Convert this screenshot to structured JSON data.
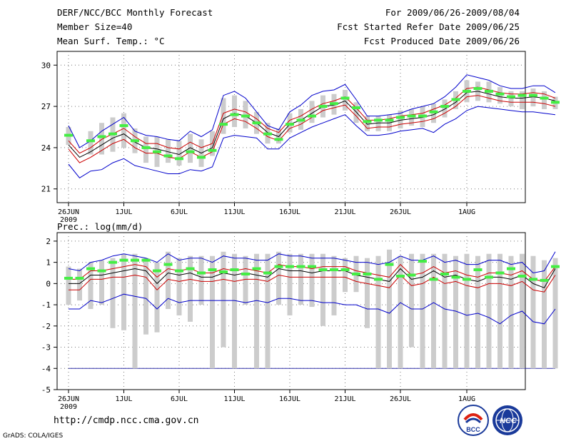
{
  "header": {
    "title": "DERF/NCC/BCC Monthly Forecast",
    "member_size": "Member Size=40",
    "variable_1": "Mean Surf. Temp.: °C",
    "period": "For 2009/06/26-2009/08/04",
    "fcst_started": "Fcst Started Refer Date 2009/06/25",
    "fcst_produced": "Fcst Produced Date 2009/06/26"
  },
  "footer": {
    "url": "http://cmdp.ncc.cma.gov.cn",
    "grads": "GrADS: COLA/IGES",
    "logo_left_text": "BCC",
    "logo_right_text": "NCC"
  },
  "chart_data": [
    {
      "type": "ensemble-line",
      "title": "Mean Surf. Temp.: °C",
      "ylim": [
        20,
        31
      ],
      "yticks": [
        21,
        24,
        27,
        30
      ],
      "grid": true,
      "x_days": 40,
      "x_ticks": [
        {
          "day": 0,
          "label": "26JUN"
        },
        {
          "day": 5,
          "label": "1JUL"
        },
        {
          "day": 10,
          "label": "6JUL"
        },
        {
          "day": 15,
          "label": "11JUL"
        },
        {
          "day": 20,
          "label": "16JUL"
        },
        {
          "day": 25,
          "label": "21JUL"
        },
        {
          "day": 30,
          "label": "26JUL"
        },
        {
          "day": 36,
          "label": "1AUG"
        }
      ],
      "year_label": "2009",
      "colors": {
        "mean": "#000000",
        "inner": "#cc0000",
        "outer": "#0000cc",
        "bar": "#cccccc",
        "obs": "#44ee44"
      },
      "series": [
        {
          "name": "mean",
          "values": [
            24.2,
            23.3,
            23.7,
            24.2,
            24.7,
            25.0,
            24.4,
            24.0,
            23.9,
            23.7,
            23.5,
            24.0,
            23.6,
            24.0,
            26.1,
            26.5,
            26.3,
            25.8,
            25.1,
            24.8,
            25.7,
            26.0,
            26.5,
            27.0,
            27.1,
            27.4,
            26.6,
            25.7,
            25.8,
            25.8,
            26.0,
            26.1,
            26.2,
            26.4,
            26.8,
            27.3,
            28.0,
            28.1,
            27.9,
            27.7,
            27.6,
            27.6,
            27.7,
            27.6,
            27.4
          ]
        },
        {
          "name": "inner_upper",
          "values": [
            24.5,
            23.6,
            24.0,
            24.6,
            25.0,
            25.4,
            24.8,
            24.3,
            24.3,
            24.0,
            23.9,
            24.4,
            24.0,
            24.3,
            26.5,
            26.8,
            26.6,
            26.1,
            25.4,
            25.1,
            26.0,
            26.3,
            26.8,
            27.2,
            27.4,
            27.7,
            26.9,
            26.0,
            26.0,
            26.1,
            26.3,
            26.4,
            26.5,
            26.8,
            27.1,
            27.6,
            28.3,
            28.4,
            28.2,
            28.0,
            27.9,
            27.9,
            28.0,
            27.9,
            27.6
          ]
        },
        {
          "name": "inner_lower",
          "values": [
            23.9,
            22.9,
            23.3,
            23.8,
            24.3,
            24.6,
            24.0,
            23.6,
            23.6,
            23.3,
            23.2,
            23.7,
            23.3,
            23.7,
            25.7,
            26.1,
            25.9,
            25.4,
            24.8,
            24.5,
            25.4,
            25.7,
            26.2,
            26.7,
            26.9,
            27.1,
            26.3,
            25.4,
            25.5,
            25.5,
            25.7,
            25.8,
            25.9,
            26.1,
            26.5,
            27.0,
            27.7,
            27.8,
            27.6,
            27.4,
            27.3,
            27.3,
            27.3,
            27.2,
            27.0
          ]
        },
        {
          "name": "outer_upper",
          "values": [
            25.6,
            24.0,
            24.5,
            25.2,
            25.7,
            26.2,
            25.2,
            24.9,
            24.8,
            24.6,
            24.5,
            25.2,
            24.8,
            25.3,
            27.8,
            28.1,
            27.6,
            26.6,
            25.6,
            25.3,
            26.6,
            27.1,
            27.8,
            28.1,
            28.2,
            28.6,
            27.5,
            26.3,
            26.3,
            26.4,
            26.5,
            26.8,
            27.0,
            27.2,
            27.7,
            28.4,
            29.3,
            29.1,
            28.9,
            28.5,
            28.3,
            28.3,
            28.5,
            28.5,
            28.0
          ]
        },
        {
          "name": "outer_lower",
          "values": [
            22.8,
            21.8,
            22.3,
            22.4,
            22.9,
            23.2,
            22.7,
            22.5,
            22.3,
            22.1,
            22.1,
            22.4,
            22.3,
            22.6,
            24.7,
            24.9,
            24.8,
            24.7,
            23.9,
            23.9,
            24.7,
            25.1,
            25.5,
            25.8,
            26.1,
            26.4,
            25.6,
            24.9,
            24.9,
            25.0,
            25.2,
            25.3,
            25.4,
            25.1,
            25.7,
            26.1,
            26.7,
            27.0,
            26.9,
            26.8,
            26.7,
            26.6,
            26.6,
            26.5,
            26.4
          ]
        },
        {
          "name": "obs",
          "values": [
            24.9,
            null,
            24.5,
            24.8,
            25.0,
            25.6,
            24.5,
            24.0,
            23.7,
            23.4,
            23.2,
            23.7,
            23.3,
            23.8,
            25.7,
            26.4,
            26.3,
            25.8,
            25.0,
            24.6,
            25.7,
            26.0,
            26.3,
            27.0,
            27.2,
            27.6,
            26.9,
            25.9,
            26.0,
            26.0,
            26.2,
            26.3,
            26.3,
            26.6,
            27.0,
            27.5,
            28.1,
            28.3,
            28.1,
            27.9,
            27.7,
            27.8,
            27.8,
            27.6,
            27.3
          ]
        }
      ],
      "bars": {
        "low": [
          24.2,
          null,
          23.5,
          23.5,
          23.7,
          24.0,
          23.6,
          22.9,
          22.6,
          22.9,
          22.7,
          22.9,
          22.6,
          23.4,
          25.0,
          25.5,
          25.4,
          25.0,
          24.3,
          24.3,
          25.1,
          25.3,
          25.8,
          26.2,
          26.4,
          26.7,
          25.8,
          25.2,
          25.2,
          25.2,
          25.4,
          25.6,
          25.5,
          25.8,
          26.2,
          26.8,
          27.3,
          27.4,
          27.3,
          27.2,
          27.0,
          26.8,
          27.0,
          26.8,
          26.8
        ],
        "high": [
          25.5,
          null,
          25.2,
          25.8,
          26.2,
          26.5,
          25.4,
          24.8,
          24.8,
          24.6,
          24.5,
          25.0,
          24.6,
          25.2,
          27.6,
          27.8,
          27.4,
          26.6,
          25.8,
          25.4,
          26.5,
          26.8,
          27.4,
          27.8,
          27.9,
          28.2,
          27.3,
          26.3,
          26.3,
          26.4,
          26.7,
          26.8,
          27.0,
          27.2,
          27.5,
          28.1,
          28.9,
          28.8,
          28.8,
          28.4,
          28.1,
          28.1,
          28.3,
          28.1,
          27.7
        ]
      }
    },
    {
      "type": "ensemble-line",
      "title": "Prec.: log(mm/d)",
      "ylim": [
        -5,
        2.4
      ],
      "yticks": [
        -5,
        -4,
        -3,
        -2,
        -1,
        0,
        1,
        2
      ],
      "grid": true,
      "x_days": 40,
      "x_ticks": [
        {
          "day": 0,
          "label": "26JUN"
        },
        {
          "day": 5,
          "label": "1JUL"
        },
        {
          "day": 10,
          "label": "6JUL"
        },
        {
          "day": 15,
          "label": "11JUL"
        },
        {
          "day": 20,
          "label": "16JUL"
        },
        {
          "day": 25,
          "label": "21JUL"
        },
        {
          "day": 30,
          "label": "26JUL"
        },
        {
          "day": 36,
          "label": "1AUG"
        }
      ],
      "year_label": "2009",
      "baseline": -4,
      "colors": {
        "mean": "#000000",
        "inner": "#cc0000",
        "outer": "#0000cc",
        "bar": "#cccccc",
        "obs": "#44ee44",
        "baseline": "#3333aa"
      },
      "series": [
        {
          "name": "mean",
          "values": [
            0.0,
            0.0,
            0.4,
            0.4,
            0.5,
            0.6,
            0.7,
            0.6,
            0.0,
            0.5,
            0.4,
            0.5,
            0.3,
            0.3,
            0.5,
            0.4,
            0.5,
            0.4,
            0.3,
            0.7,
            0.6,
            0.6,
            0.5,
            0.6,
            0.6,
            0.6,
            0.4,
            0.3,
            0.2,
            0.1,
            0.7,
            0.2,
            0.3,
            0.6,
            0.3,
            0.4,
            0.2,
            0.1,
            0.3,
            0.3,
            0.2,
            0.4,
            0.0,
            -0.2,
            0.7
          ]
        },
        {
          "name": "inner_upper",
          "values": [
            0.2,
            0.2,
            0.6,
            0.6,
            0.7,
            0.8,
            0.9,
            0.8,
            0.3,
            0.7,
            0.6,
            0.7,
            0.5,
            0.5,
            0.7,
            0.6,
            0.7,
            0.6,
            0.5,
            0.9,
            0.8,
            0.8,
            0.7,
            0.8,
            0.8,
            0.8,
            0.6,
            0.5,
            0.4,
            0.3,
            0.9,
            0.4,
            0.5,
            0.8,
            0.5,
            0.6,
            0.4,
            0.3,
            0.5,
            0.5,
            0.4,
            0.6,
            0.2,
            0.1,
            0.8
          ]
        },
        {
          "name": "inner_lower",
          "values": [
            -0.3,
            -0.3,
            0.2,
            0.2,
            0.3,
            0.3,
            0.4,
            0.3,
            -0.3,
            0.2,
            0.1,
            0.2,
            0.1,
            0.1,
            0.2,
            0.1,
            0.2,
            0.2,
            0.1,
            0.4,
            0.3,
            0.3,
            0.3,
            0.3,
            0.3,
            0.3,
            0.1,
            0.0,
            -0.1,
            -0.2,
            0.4,
            -0.1,
            0.0,
            0.3,
            0.0,
            0.1,
            -0.1,
            -0.2,
            0.0,
            0.0,
            -0.1,
            0.1,
            -0.3,
            -0.4,
            0.4
          ]
        },
        {
          "name": "outer_upper",
          "values": [
            0.7,
            0.6,
            1.0,
            1.1,
            1.3,
            1.4,
            1.3,
            1.2,
            1.0,
            1.4,
            1.1,
            1.2,
            1.2,
            1.0,
            1.3,
            1.2,
            1.2,
            1.1,
            1.1,
            1.4,
            1.3,
            1.3,
            1.2,
            1.2,
            1.2,
            1.1,
            1.0,
            1.0,
            0.9,
            1.0,
            1.3,
            1.1,
            1.1,
            1.3,
            1.0,
            1.1,
            0.9,
            0.9,
            1.1,
            1.1,
            0.9,
            1.0,
            0.5,
            0.6,
            1.5
          ]
        },
        {
          "name": "outer_lower",
          "values": [
            -1.2,
            -1.2,
            -0.8,
            -0.9,
            -0.7,
            -0.5,
            -0.6,
            -0.7,
            -1.2,
            -0.7,
            -0.9,
            -0.8,
            -0.8,
            -0.8,
            -0.8,
            -0.8,
            -0.9,
            -0.8,
            -0.9,
            -0.7,
            -0.7,
            -0.8,
            -0.8,
            -0.9,
            -0.9,
            -1.0,
            -1.0,
            -1.2,
            -1.2,
            -1.4,
            -0.9,
            -1.2,
            -1.2,
            -0.9,
            -1.2,
            -1.3,
            -1.5,
            -1.4,
            -1.6,
            -1.9,
            -1.5,
            -1.3,
            -1.8,
            -1.9,
            -1.2
          ]
        },
        {
          "name": "obs",
          "values": [
            0.25,
            0.25,
            0.7,
            0.6,
            1.0,
            1.1,
            1.1,
            1.1,
            0.6,
            0.9,
            0.6,
            0.7,
            0.5,
            0.65,
            0.55,
            0.65,
            0.45,
            0.7,
            0.5,
            0.8,
            0.8,
            0.8,
            0.8,
            0.65,
            0.65,
            0.65,
            0.45,
            0.45,
            0.2,
            0.9,
            0.35,
            0.4,
            1.05,
            0.2,
            0.45,
            0.3,
            0.2,
            0.65,
            0.3,
            0.5,
            0.7,
            0.35,
            0.2,
            0.15,
            0.8
          ]
        }
      ],
      "bars": {
        "low": [
          -1.0,
          -0.8,
          -1.2,
          -1.0,
          -2.1,
          -2.2,
          -4.0,
          -2.4,
          -2.3,
          -1.2,
          -1.5,
          -1.8,
          -1.0,
          -4.0,
          -3.0,
          -4.0,
          -1.0,
          -4.0,
          -4.0,
          -1.0,
          -1.5,
          -1.0,
          -1.1,
          -2.0,
          -1.5,
          -0.4,
          -0.4,
          -2.1,
          -4.0,
          -4.0,
          -4.0,
          -3.0,
          -4.0,
          -4.0,
          -4.0,
          -4.0,
          -4.0,
          -4.0,
          -4.0,
          -4.0,
          -4.0,
          -4.0,
          -4.0,
          -4.0,
          -4.0
        ],
        "high": [
          0.8,
          0.7,
          1.0,
          1.1,
          1.2,
          1.4,
          1.4,
          1.2,
          1.0,
          1.5,
          1.2,
          1.3,
          1.3,
          1.3,
          1.5,
          1.4,
          1.3,
          1.4,
          1.4,
          1.5,
          1.4,
          1.4,
          1.4,
          1.4,
          1.3,
          1.2,
          1.3,
          1.2,
          1.3,
          1.6,
          1.3,
          1.4,
          1.4,
          1.4,
          1.4,
          1.3,
          1.4,
          1.3,
          1.4,
          1.4,
          1.3,
          1.4,
          1.3,
          1.1,
          1.2
        ]
      }
    }
  ]
}
